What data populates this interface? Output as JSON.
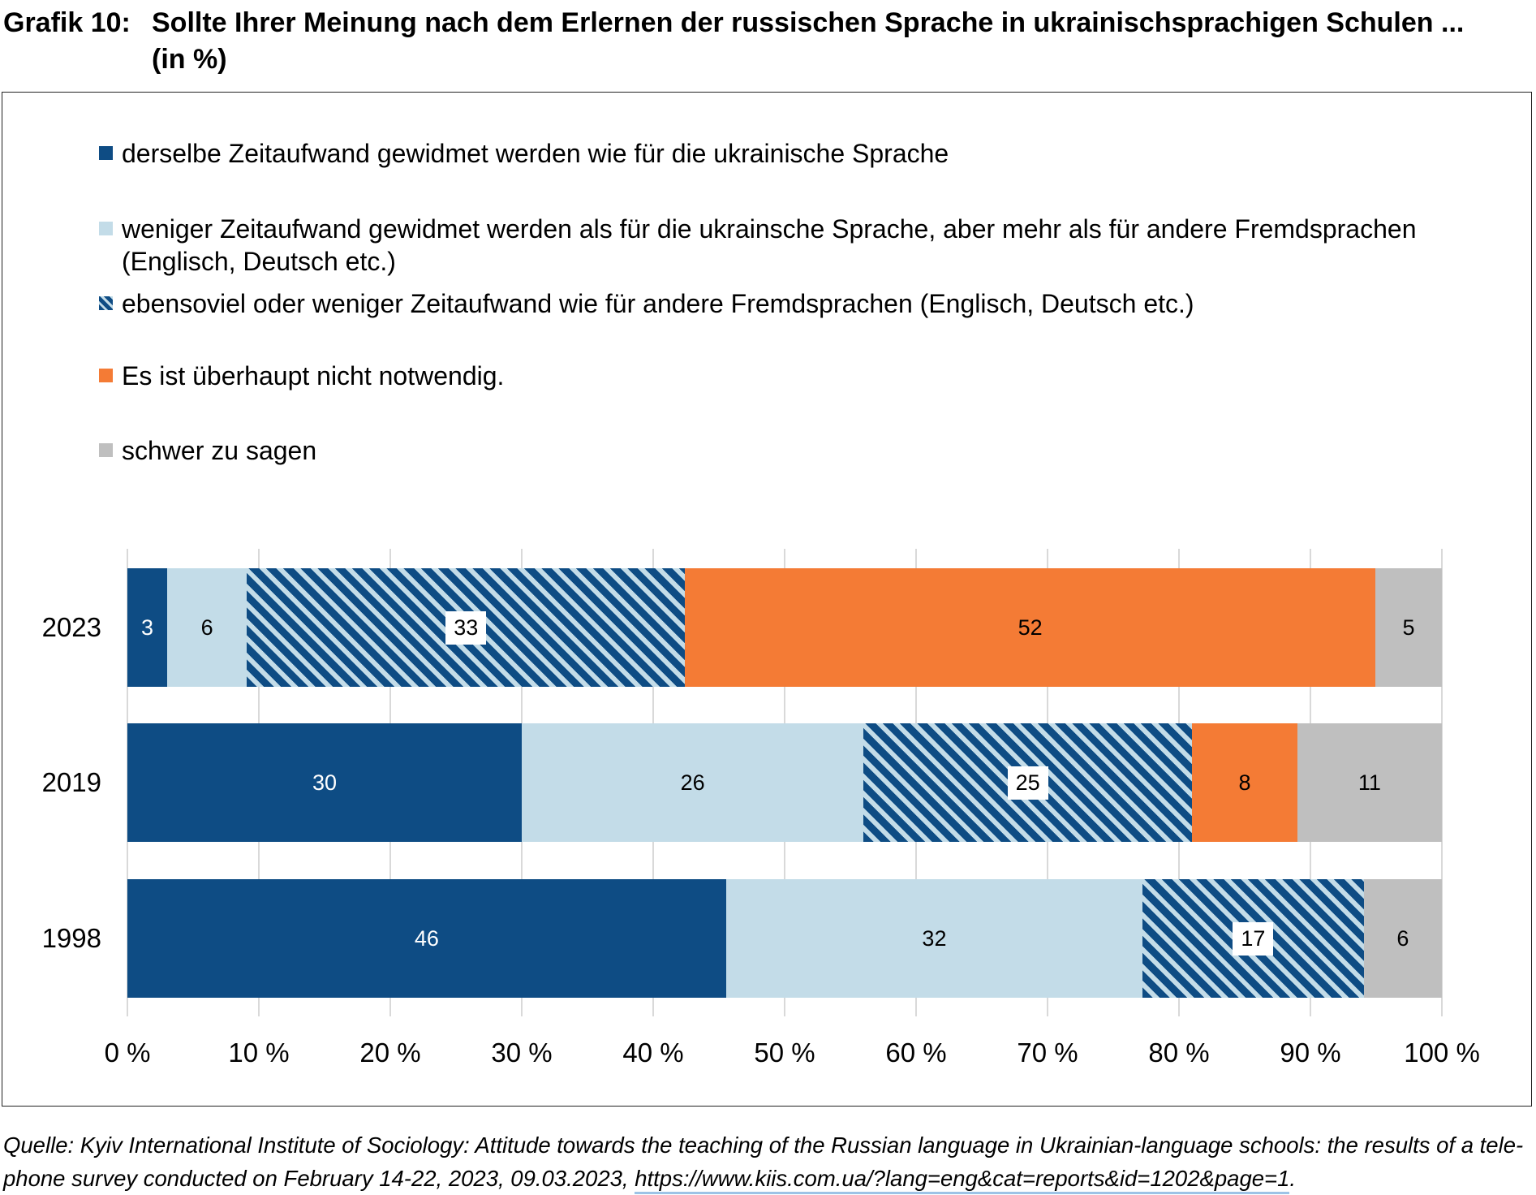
{
  "page": {
    "title_prefix": "Grafik 10:",
    "title_line1": "Sollte Ihrer Meinung nach dem Erlernen der russischen Sprache in ukrainischsprachigen Schulen ...",
    "title_line2": "(in %)"
  },
  "colors": {
    "dark_blue": "#0E4C84",
    "light_blue": "#C3DCE8",
    "orange": "#F47B35",
    "gray": "#BFBFBF",
    "gridline": "#D9D9D9",
    "frame_border": "#222222",
    "url_underline": "#9DC3E6",
    "label_box": "#FFFFFF",
    "text": "#000000"
  },
  "chart_data": {
    "type": "bar",
    "variant": "horizontal-stacked-percent",
    "title": "Grafik 10: Sollte Ihrer Meinung nach dem Erlernen der russischen Sprache in ukrainischsprachigen Schulen ... (in %)",
    "categories": [
      "2023",
      "2019",
      "1998"
    ],
    "series": [
      {
        "name": "derselbe Zeitaufwand gewidmet werden wie für die ukrainische Sprache",
        "pattern": "solid",
        "color": "#0E4C84",
        "label_color": "#FFFFFF",
        "label_box": false,
        "values": [
          3,
          30,
          46
        ]
      },
      {
        "name": "weniger Zeitaufwand gewidmet werden als für die ukrainsche Sprache, aber mehr als für andere Fremdsprachen (Englisch, Deutsch etc.)",
        "pattern": "solid",
        "color": "#C3DCE8",
        "label_color": "#000000",
        "label_box": false,
        "values": [
          6,
          26,
          32
        ]
      },
      {
        "name": "ebensoviel oder weniger Zeitaufwand wie für andere Fremdsprachen (Englisch, Deutsch etc.)",
        "pattern": "diagonal-stripes",
        "color": "#0E4C84",
        "stripe_color": "#C3DCE8",
        "label_color": "#000000",
        "label_box": true,
        "values": [
          33,
          25,
          17
        ]
      },
      {
        "name": "Es ist überhaupt nicht notwendig.",
        "pattern": "solid",
        "color": "#F47B35",
        "label_color": "#000000",
        "label_box": false,
        "values": [
          52,
          8,
          0
        ]
      },
      {
        "name": "schwer zu sagen",
        "pattern": "solid",
        "color": "#BFBFBF",
        "label_color": "#000000",
        "label_box": false,
        "values": [
          5,
          11,
          6
        ]
      }
    ],
    "x_ticks": [
      "0 %",
      "10 %",
      "20 %",
      "30 %",
      "40 %",
      "50 %",
      "60 %",
      "70 %",
      "80 %",
      "90 %",
      "100 %"
    ],
    "xlim": [
      0,
      100
    ],
    "grid": true,
    "legend_position": "top-left",
    "data_labels": true
  },
  "source": {
    "line1": "Quelle: Kyiv International Institute of Sociology: Attitude towards the teaching of the Russian language in Ukrainian-language schools: the results of a tele-",
    "line2_before": "phone survey conducted on February 14-22, 2023, 09.03.2023, ",
    "url": "https://www.kiis.com.ua/?lang=eng&cat=reports&id=1202&page=1",
    "line2_after": "."
  }
}
